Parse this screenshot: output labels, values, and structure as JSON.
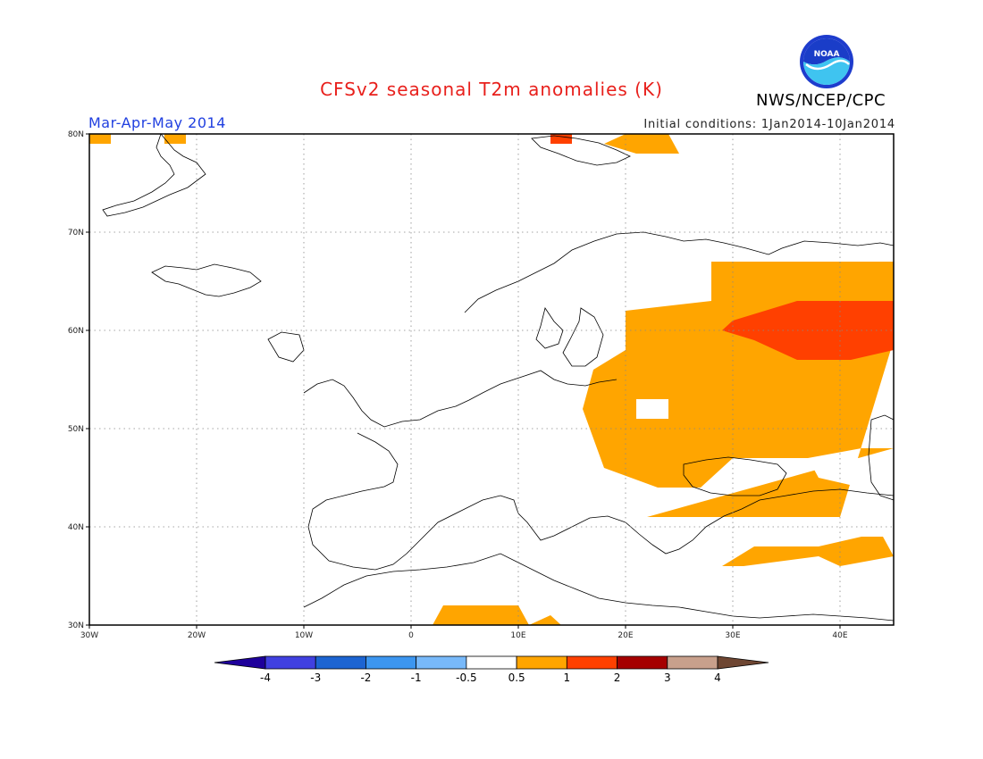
{
  "title": "CFSv2 seasonal T2m anomalies (K)",
  "season": "Mar-Apr-May 2014",
  "initial_conditions": "Initial conditions: 1Jan2014-10Jan2014",
  "org_label": "NWS/NCEP/CPC",
  "logo_text": "NOAA",
  "map": {
    "lon_range": [
      -30,
      45
    ],
    "lat_range": [
      30,
      80
    ],
    "lon_ticks": [
      {
        "value": -30,
        "label": "30W"
      },
      {
        "value": -20,
        "label": "20W"
      },
      {
        "value": -10,
        "label": "10W"
      },
      {
        "value": 0,
        "label": "0"
      },
      {
        "value": 10,
        "label": "10E"
      },
      {
        "value": 20,
        "label": "20E"
      },
      {
        "value": 30,
        "label": "30E"
      },
      {
        "value": 40,
        "label": "40E"
      }
    ],
    "lat_ticks": [
      {
        "value": 30,
        "label": "30N"
      },
      {
        "value": 40,
        "label": "40N"
      },
      {
        "value": 50,
        "label": "50N"
      },
      {
        "value": 60,
        "label": "60N"
      },
      {
        "value": 70,
        "label": "70N"
      },
      {
        "value": 80,
        "label": "80N"
      }
    ],
    "anomaly_regions": [
      {
        "bin": "0.5-1",
        "color": "#ffa500",
        "lon": [
          [
            22,
            41
          ],
          [
            40,
            41
          ],
          [
            45,
            59
          ],
          [
            45,
            67
          ],
          [
            28,
            67
          ],
          [
            28,
            63
          ],
          [
            20,
            62
          ],
          [
            20,
            58
          ],
          [
            17,
            56
          ],
          [
            16,
            52
          ],
          [
            17,
            49
          ],
          [
            18,
            46
          ],
          [
            23,
            44
          ],
          [
            27,
            44
          ],
          [
            30,
            47
          ],
          [
            37,
            47
          ],
          [
            42,
            48
          ],
          [
            45,
            48
          ]
        ]
      },
      {
        "bin": "1-2",
        "color": "#ff4000",
        "lon": [
          [
            30,
            61
          ],
          [
            36,
            63
          ],
          [
            45,
            63
          ],
          [
            45,
            58
          ],
          [
            41,
            57
          ],
          [
            36,
            57
          ],
          [
            32,
            59
          ],
          [
            29,
            60
          ]
        ]
      },
      {
        "bin": "0.5-1",
        "color": "#ffa500",
        "lon": [
          [
            -3,
            30
          ],
          [
            2,
            30
          ],
          [
            3,
            32
          ],
          [
            10,
            32
          ],
          [
            11,
            30
          ],
          [
            13,
            31
          ],
          [
            14,
            30
          ],
          [
            -3,
            30
          ]
        ]
      },
      {
        "bin": "0.5-1",
        "color": "#ffa500",
        "lon": [
          [
            29,
            36
          ],
          [
            32,
            38
          ],
          [
            38,
            38
          ],
          [
            42,
            39
          ],
          [
            44,
            39
          ],
          [
            45,
            37
          ],
          [
            40,
            36
          ],
          [
            38,
            37
          ],
          [
            31,
            36
          ]
        ]
      },
      {
        "bin": "0.5-1",
        "color": "#ffa500",
        "lon": [
          [
            18,
            79
          ],
          [
            20,
            80
          ],
          [
            24,
            80
          ],
          [
            25,
            78
          ],
          [
            21,
            78
          ],
          [
            18,
            79
          ]
        ]
      },
      {
        "bin": "1-2",
        "color": "#ff4000",
        "lon": [
          [
            13,
            79
          ],
          [
            15,
            79
          ],
          [
            15,
            80
          ],
          [
            13,
            80
          ]
        ]
      },
      {
        "bin": "0.5-1",
        "color": "#ffa500",
        "lon": [
          [
            -30,
            79
          ],
          [
            -28,
            79
          ],
          [
            -28,
            80
          ],
          [
            -30,
            80
          ]
        ]
      },
      {
        "bin": "0.5-1",
        "color": "#ffa500",
        "lon": [
          [
            -23,
            79
          ],
          [
            -21,
            79
          ],
          [
            -21,
            80
          ],
          [
            -23,
            80
          ]
        ]
      }
    ],
    "clear_holes": [
      {
        "lon": [
          [
            21,
            51
          ],
          [
            24,
            51
          ],
          [
            24,
            53
          ],
          [
            21,
            53
          ]
        ]
      },
      {
        "lon": [
          [
            37,
            47
          ],
          [
            45,
            47
          ],
          [
            45,
            45
          ],
          [
            42,
            44
          ],
          [
            38,
            45
          ]
        ]
      }
    ]
  },
  "colorbar": {
    "colors": [
      "#1e009b",
      "#4040e0",
      "#1c64d2",
      "#3c96f0",
      "#78b9fa",
      "#ffffff",
      "#ffa500",
      "#ff4000",
      "#a50000",
      "#c8a08c",
      "#6e4632"
    ],
    "labels": [
      "-4",
      "-3",
      "-2",
      "-1",
      "-0.5",
      "0.5",
      "1",
      "2",
      "3",
      "4"
    ]
  }
}
